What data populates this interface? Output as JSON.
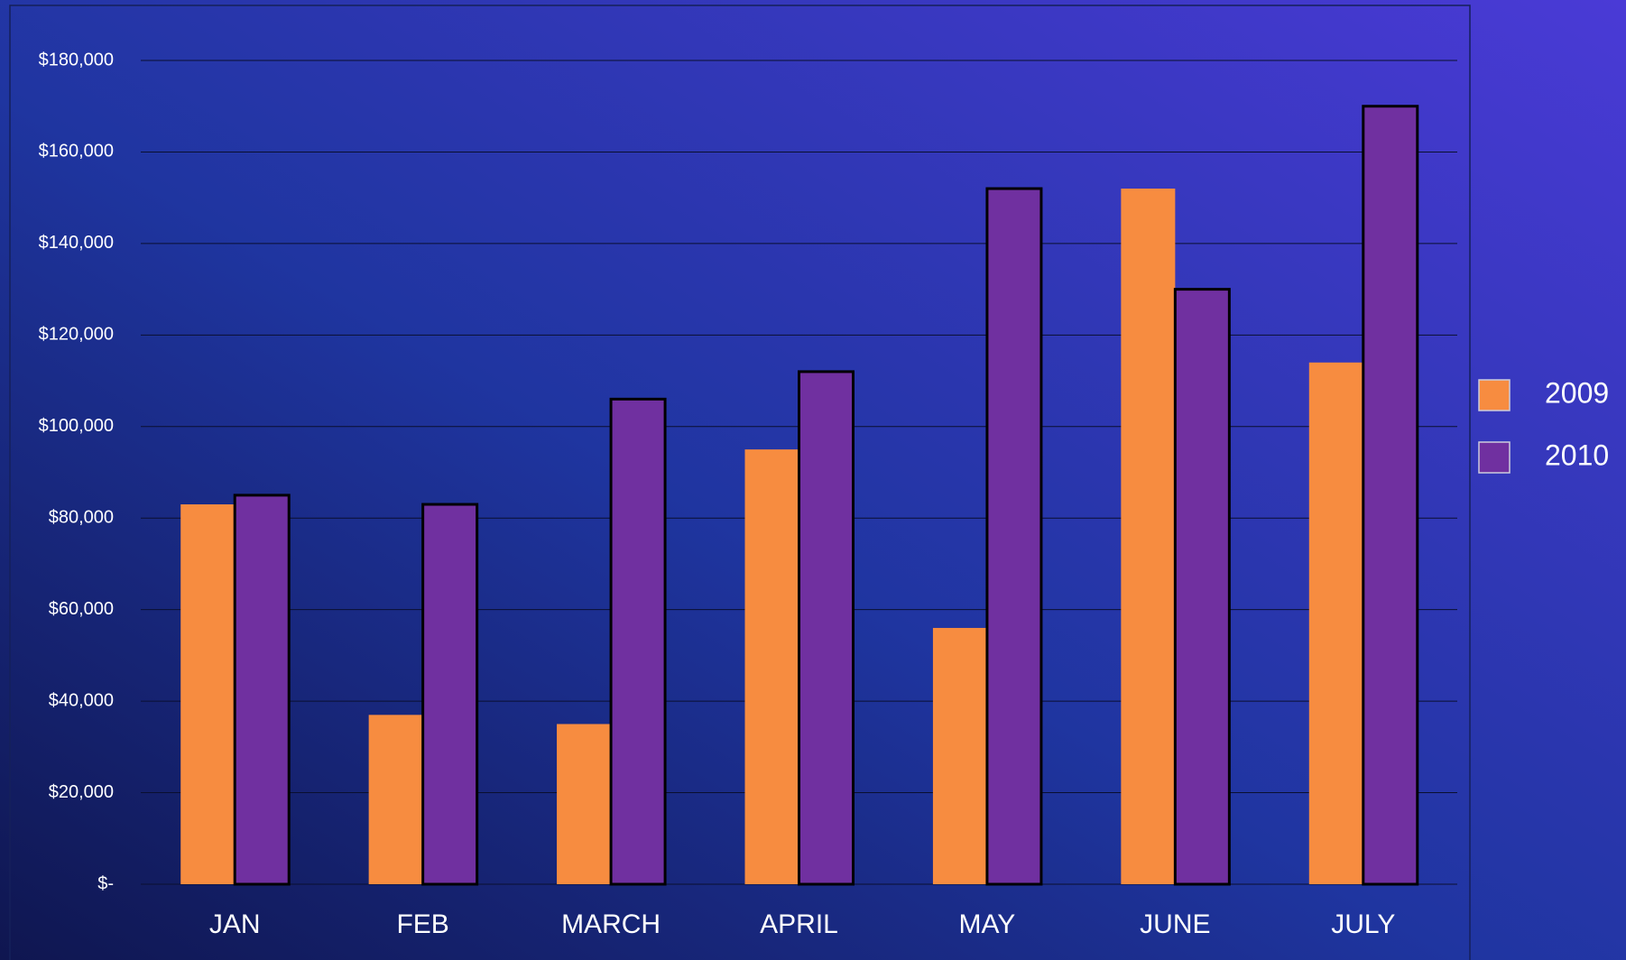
{
  "chart_data": {
    "type": "bar",
    "categories": [
      "JAN",
      "FEB",
      "MARCH",
      "APRIL",
      "MAY",
      "JUNE",
      "JULY"
    ],
    "series": [
      {
        "name": "2009",
        "color": "#f78c40",
        "values": [
          83000,
          37000,
          35000,
          95000,
          56000,
          152000,
          114000
        ]
      },
      {
        "name": "2010",
        "color": "#7030a0",
        "values": [
          85000,
          83000,
          106000,
          112000,
          152000,
          130000,
          170000
        ]
      }
    ],
    "ylim": [
      0,
      180000
    ],
    "yticks": [
      {
        "value": 0,
        "label": "$-"
      },
      {
        "value": 20000,
        "label": "$20,000"
      },
      {
        "value": 40000,
        "label": "$40,000"
      },
      {
        "value": 60000,
        "label": "$60,000"
      },
      {
        "value": 80000,
        "label": "$80,000"
      },
      {
        "value": 100000,
        "label": "$100,000"
      },
      {
        "value": 120000,
        "label": "$120,000"
      },
      {
        "value": 140000,
        "label": "$140,000"
      },
      {
        "value": 160000,
        "label": "$160,000"
      },
      {
        "value": 180000,
        "label": "$180,000"
      }
    ],
    "grid": true,
    "legend": "right"
  }
}
